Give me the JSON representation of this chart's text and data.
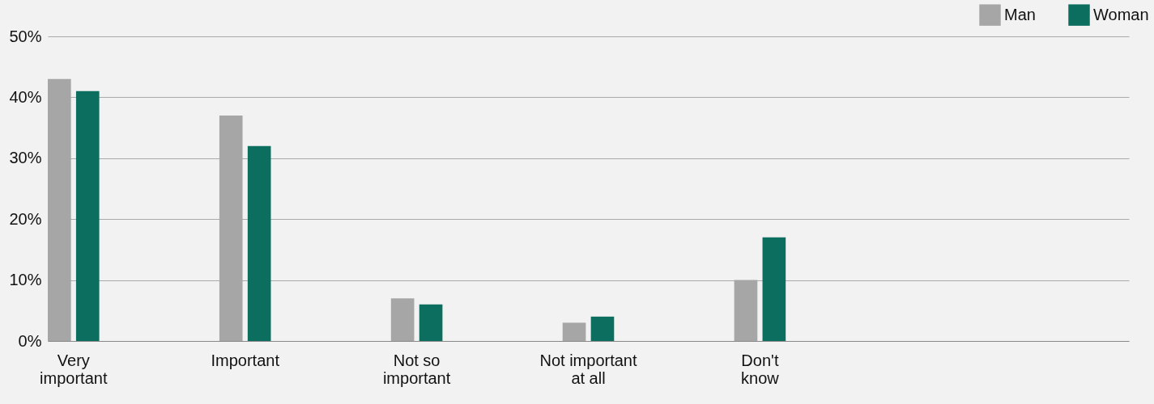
{
  "chart_data": {
    "type": "bar",
    "categories": [
      "Very important",
      "Important",
      "Not so important",
      "Not important at all",
      "Don't know"
    ],
    "series": [
      {
        "name": "Man",
        "color": "#a6a6a6",
        "values": [
          43,
          37,
          7,
          3,
          10
        ]
      },
      {
        "name": "Woman",
        "color": "#0b6e5e",
        "values": [
          41,
          32,
          6,
          4,
          17
        ]
      }
    ],
    "ylim": [
      0,
      50
    ],
    "yticks": [
      {
        "value": 0,
        "label": "0%"
      },
      {
        "value": 10,
        "label": "10%"
      },
      {
        "value": 20,
        "label": "20%"
      },
      {
        "value": 30,
        "label": "30%"
      },
      {
        "value": 40,
        "label": "40%"
      },
      {
        "value": 50,
        "label": "50%"
      }
    ],
    "grid": "y",
    "legend": "top right"
  }
}
